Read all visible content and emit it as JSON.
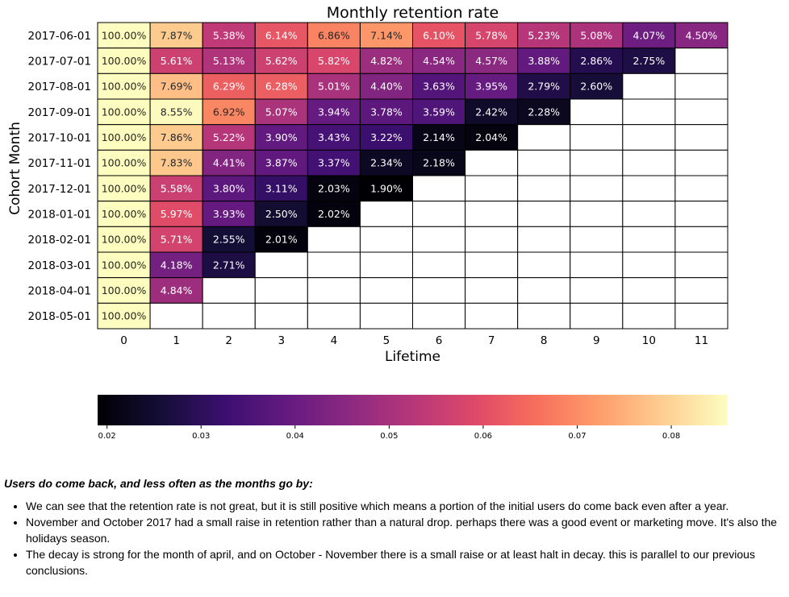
{
  "chart_data": {
    "type": "heatmap",
    "title": "Monthly retention rate",
    "xlabel": "Lifetime",
    "ylabel": "Cohort Month",
    "x": [
      0,
      1,
      2,
      3,
      4,
      5,
      6,
      7,
      8,
      9,
      10,
      11
    ],
    "y": [
      "2017-06-01",
      "2017-07-01",
      "2017-08-01",
      "2017-09-01",
      "2017-10-01",
      "2017-11-01",
      "2017-12-01",
      "2018-01-01",
      "2018-02-01",
      "2018-03-01",
      "2018-04-01",
      "2018-05-01"
    ],
    "values": [
      [
        1.0,
        0.0787,
        0.0538,
        0.0614,
        0.0686,
        0.0714,
        0.061,
        0.0578,
        0.0523,
        0.0508,
        0.0407,
        0.045
      ],
      [
        1.0,
        0.0561,
        0.0513,
        0.0562,
        0.0582,
        0.0482,
        0.0454,
        0.0457,
        0.0388,
        0.0286,
        0.0275,
        null
      ],
      [
        1.0,
        0.0769,
        0.0629,
        0.0628,
        0.0501,
        0.044,
        0.0363,
        0.0395,
        0.0279,
        0.026,
        null,
        null
      ],
      [
        1.0,
        0.0855,
        0.0692,
        0.0507,
        0.0394,
        0.0378,
        0.0359,
        0.0242,
        0.0228,
        null,
        null,
        null
      ],
      [
        1.0,
        0.0786,
        0.0522,
        0.039,
        0.0343,
        0.0322,
        0.0214,
        0.0204,
        null,
        null,
        null,
        null
      ],
      [
        1.0,
        0.0783,
        0.0441,
        0.0387,
        0.0337,
        0.0234,
        0.0218,
        null,
        null,
        null,
        null,
        null
      ],
      [
        1.0,
        0.0558,
        0.038,
        0.0311,
        0.0203,
        0.019,
        null,
        null,
        null,
        null,
        null,
        null
      ],
      [
        1.0,
        0.0597,
        0.0393,
        0.025,
        0.0202,
        null,
        null,
        null,
        null,
        null,
        null,
        null
      ],
      [
        1.0,
        0.0571,
        0.0255,
        0.0201,
        null,
        null,
        null,
        null,
        null,
        null,
        null,
        null
      ],
      [
        1.0,
        0.0418,
        0.0271,
        null,
        null,
        null,
        null,
        null,
        null,
        null,
        null,
        null
      ],
      [
        1.0,
        0.0484,
        null,
        null,
        null,
        null,
        null,
        null,
        null,
        null,
        null,
        null
      ],
      [
        1.0,
        null,
        null,
        null,
        null,
        null,
        null,
        null,
        null,
        null,
        null,
        null
      ]
    ],
    "value_format": "percent, 2 decimals",
    "colormap": "magma",
    "color_range": [
      0.019,
      0.086
    ],
    "colorbar": {
      "orientation": "horizontal",
      "placement": "bottom",
      "ticks": [
        0.02,
        0.03,
        0.04,
        0.05,
        0.06,
        0.07,
        0.08
      ],
      "tick_labels": [
        "0.02",
        "0.03",
        "0.04",
        "0.05",
        "0.06",
        "0.07",
        "0.08"
      ]
    },
    "grid": true,
    "annotations": true
  },
  "commentary": {
    "heading": "Users do come back, and less often as the months go by:",
    "points": [
      "We can see that the retention rate is not great, but it is still positive which means a portion of the initial users do come back even after a year.",
      "November and October 2017 had a small raise in retention rather than a natural drop. perhaps there was a good event or marketing move. It's also the holidays season.",
      "The decay is strong for the month of april, and on October - November there is a small raise or at least halt in decay. this is parallel to our previous conclusions."
    ]
  }
}
